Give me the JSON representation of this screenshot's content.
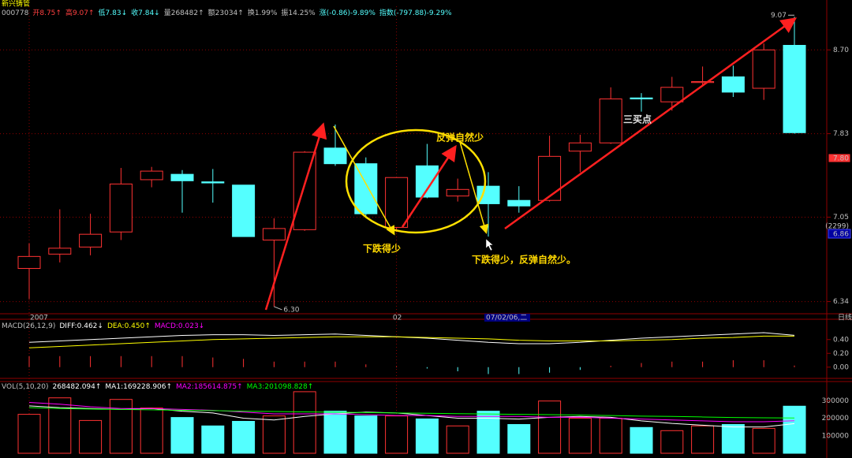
{
  "chart_data": [
    {
      "type": "candlestick",
      "title": "新兴铸管",
      "header": [
        {
          "text": "000778",
          "color": "#c0c0c0"
        },
        {
          "text": "开8.75↑",
          "color": "#ff4040"
        },
        {
          "text": "高9.07↑",
          "color": "#ff4040"
        },
        {
          "text": "低7.83↓",
          "color": "#54ffff"
        },
        {
          "text": "收7.84↓",
          "color": "#54ffff"
        },
        {
          "text": "量268482↑",
          "color": "#c0c0c0"
        },
        {
          "text": "额23034↑",
          "color": "#c0c0c0"
        },
        {
          "text": "换1.99%",
          "color": "#c0c0c0"
        },
        {
          "text": "振14.25%",
          "color": "#c0c0c0"
        },
        {
          "text": "涨(-0.86)-9.89%",
          "color": "#54ffff"
        },
        {
          "text": "指数(-797.88)-9.29%",
          "color": "#54ffff"
        }
      ],
      "categories": [
        "2007",
        null,
        null,
        null,
        null,
        null,
        null,
        null,
        null,
        null,
        null,
        null,
        "02",
        null,
        null,
        null,
        null,
        null,
        null,
        null,
        null,
        null,
        null,
        null,
        null,
        null
      ],
      "open": [
        6.61,
        6.73,
        6.79,
        6.92,
        7.39,
        7.44,
        7.37,
        7.34,
        6.85,
        6.94,
        7.69,
        7.54,
        6.96,
        7.52,
        7.24,
        7.33,
        7.2,
        7.2,
        7.66,
        7.74,
        8.19,
        8.15,
        8.35,
        8.41,
        8.29,
        8.75
      ],
      "high": [
        6.82,
        7.12,
        7.08,
        7.5,
        7.51,
        7.48,
        7.49,
        7.34,
        7.04,
        7.66,
        7.92,
        7.6,
        7.41,
        7.73,
        7.4,
        7.46,
        7.33,
        7.81,
        7.82,
        8.3,
        8.24,
        8.41,
        8.52,
        8.53,
        8.77,
        9.07
      ],
      "low": [
        6.36,
        6.66,
        6.72,
        6.85,
        7.32,
        7.09,
        7.18,
        6.88,
        6.3,
        6.93,
        7.52,
        7.06,
        6.92,
        7.22,
        7.19,
        6.88,
        7.09,
        7.19,
        7.46,
        7.73,
        8.05,
        8.06,
        8.31,
        8.2,
        8.17,
        7.83
      ],
      "close": [
        6.71,
        6.78,
        6.9,
        7.35,
        7.47,
        7.38,
        7.36,
        6.88,
        6.95,
        7.65,
        7.54,
        7.08,
        7.41,
        7.23,
        7.3,
        7.17,
        7.15,
        7.61,
        7.74,
        8.18,
        8.18,
        8.3,
        8.36,
        8.25,
        8.7,
        7.84
      ],
      "up_color": "#ff3232",
      "down_color": "#54ffff",
      "ylim": [
        6.25,
        9.19
      ],
      "log_scale": true,
      "yticks": [
        6.34,
        7.05,
        7.83,
        {
          "value": 8.7,
          "label": "8.70"
        }
      ],
      "grid": true,
      "max_label": "9.07",
      "min_label": "6.30",
      "side_labels": [
        "7.80",
        "(2299)",
        "6.86"
      ],
      "cursor_date": "07/02/06,二",
      "period": "日线",
      "annotations": [
        "下跌得少",
        "反弹自然少",
        "下跌得少，反弹自然少。",
        "三买点"
      ]
    },
    {
      "type": "macd",
      "header": [
        {
          "text": "MACD(26,12,9)",
          "color": "#c0c0c0"
        },
        {
          "text": "DIFF:0.462↓",
          "color": "#ffffff"
        },
        {
          "text": "DEA:0.450↑",
          "color": "#ffff00"
        },
        {
          "text": "MACD:0.023↓",
          "color": "#ff00ff"
        }
      ],
      "series": [
        {
          "color": "#ffffff",
          "values": [
            0.36,
            0.38,
            0.4,
            0.42,
            0.44,
            0.46,
            0.47,
            0.47,
            0.46,
            0.47,
            0.48,
            0.46,
            0.44,
            0.42,
            0.39,
            0.36,
            0.34,
            0.34,
            0.36,
            0.39,
            0.42,
            0.44,
            0.46,
            0.48,
            0.5,
            0.462
          ]
        },
        {
          "color": "#ffff00",
          "values": [
            0.28,
            0.3,
            0.32,
            0.34,
            0.36,
            0.38,
            0.4,
            0.41,
            0.42,
            0.43,
            0.44,
            0.44,
            0.44,
            0.43,
            0.42,
            0.41,
            0.39,
            0.38,
            0.38,
            0.38,
            0.39,
            0.4,
            0.42,
            0.43,
            0.45,
            0.45
          ]
        }
      ],
      "bars": [
        0.16,
        0.16,
        0.16,
        0.16,
        0.16,
        0.16,
        0.14,
        0.12,
        0.08,
        0.08,
        0.08,
        0.04,
        0.01,
        -0.02,
        -0.06,
        -0.1,
        -0.1,
        -0.08,
        -0.04,
        0.02,
        0.06,
        0.08,
        0.08,
        0.1,
        0.1,
        0.023
      ],
      "ylim": [
        -0.14,
        0.66
      ],
      "yticks": [
        {
          "value": 0,
          "label": "0.00"
        },
        {
          "value": 0.2,
          "label": "0.20"
        },
        {
          "value": 0.4,
          "label": "0.40"
        }
      ]
    },
    {
      "type": "volume",
      "header": [
        {
          "text": "VOL(5,10,20)",
          "color": "#c0c0c0"
        },
        {
          "text": "268482.094↑",
          "color": "#ffffff"
        },
        {
          "text": "MA1:169228.906↑",
          "color": "#ffffff"
        },
        {
          "text": "MA2:185614.875↑",
          "color": "#ff00ff"
        },
        {
          "text": "MA3:201098.828↑",
          "color": "#00ff00"
        }
      ],
      "values": [
        222000,
        316000,
        187000,
        307000,
        258000,
        204000,
        156000,
        182000,
        213000,
        351000,
        240000,
        213000,
        213000,
        196000,
        156000,
        240000,
        164000,
        298000,
        200000,
        200000,
        147000,
        129000,
        156000,
        164000,
        142000,
        268482
      ],
      "series": [
        {
          "color": "#ffffff",
          "values": [
            270000,
            260000,
            255000,
            250000,
            255000,
            240000,
            230000,
            200000,
            190000,
            210000,
            225000,
            235000,
            230000,
            215000,
            200000,
            200000,
            195000,
            205000,
            210000,
            205000,
            185000,
            170000,
            160000,
            150000,
            150000,
            169228.906
          ]
        },
        {
          "color": "#ff00ff",
          "values": [
            290000,
            280000,
            265000,
            255000,
            255000,
            250000,
            245000,
            235000,
            225000,
            225000,
            225000,
            220000,
            215000,
            215000,
            210000,
            210000,
            210000,
            205000,
            205000,
            200000,
            195000,
            190000,
            185000,
            180000,
            180000,
            185614.875
          ]
        },
        {
          "color": "#00ff00",
          "values": [
            260000,
            255000,
            252000,
            250000,
            248000,
            245000,
            243000,
            240000,
            238000,
            236000,
            234000,
            232000,
            230000,
            228000,
            226000,
            224000,
            222000,
            220000,
            218000,
            215000,
            212000,
            210000,
            207000,
            204000,
            202000,
            201098.828
          ]
        }
      ],
      "ylim": [
        0,
        400000
      ],
      "yticks": [
        100000,
        200000,
        300000
      ]
    }
  ]
}
